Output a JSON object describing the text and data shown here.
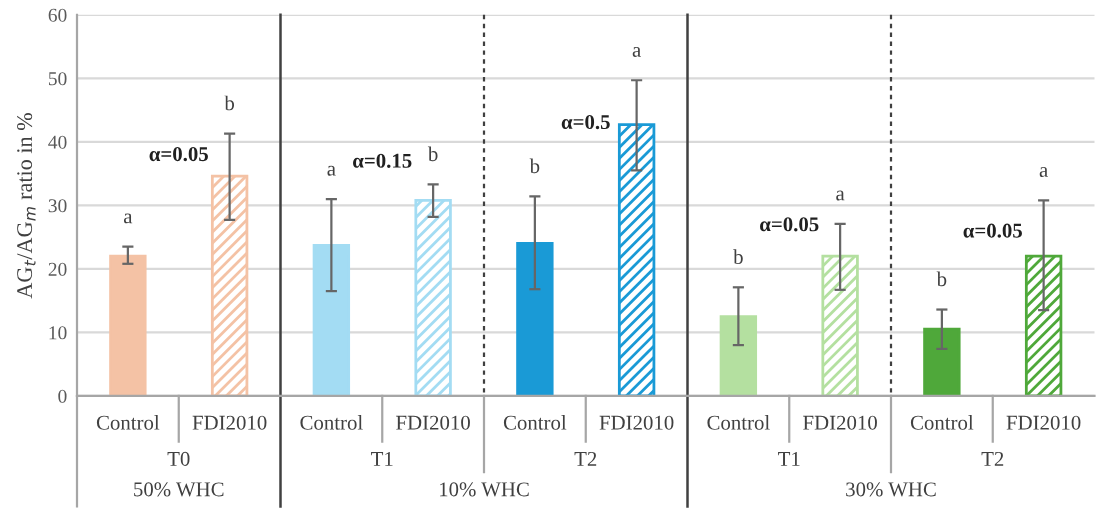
{
  "chart_data": {
    "type": "bar",
    "ylabel": "AG$_{t}$/AG$_{m}$ ratio in %",
    "categories": [
      "Control",
      "FDI2010",
      "Control",
      "FDI2010",
      "Control",
      "FDI2010",
      "Control",
      "FDI2010",
      "Control",
      "FDI2010"
    ],
    "series": [
      {
        "colors": [
          "#f4c2a5",
          "#f4c2a5",
          "#a3dcf3",
          "#a3dcf3",
          "#1a9ad6",
          "#1a9ad6",
          "#b4e0a0",
          "#b4e0a0",
          "#4fa83a",
          "#4fa83a"
        ],
        "values": [
          22,
          34.6,
          23.7,
          30.8,
          24,
          42.7,
          12.5,
          22,
          10.5,
          22
        ],
        "errors": [
          [
            20.8,
            23.5
          ],
          [
            27.7,
            41.3
          ],
          [
            16.5,
            31
          ],
          [
            28.2,
            33.3
          ],
          [
            16.8,
            31.4
          ],
          [
            35.5,
            49.7
          ],
          [
            8,
            17.1
          ],
          [
            16.7,
            27.1
          ],
          [
            7.4,
            13.6
          ],
          [
            13.5,
            30.8
          ]
        ]
      }
    ],
    "annotations": [
      "a",
      "b",
      "a",
      "b",
      "b",
      "a",
      "b",
      "a",
      "b",
      "a",
      "α=0.05",
      "α=0.15",
      "α=0.5",
      "α=0.05",
      "α=0.05",
      "T0",
      "T1",
      "T2",
      "T1",
      "T2",
      "50% WHC",
      "10% WHC",
      "30% WHC"
    ],
    "ylim": [
      0,
      60
    ],
    "yticks": [
      0,
      10,
      20,
      30,
      40,
      50,
      60
    ],
    "grid": "y"
  }
}
